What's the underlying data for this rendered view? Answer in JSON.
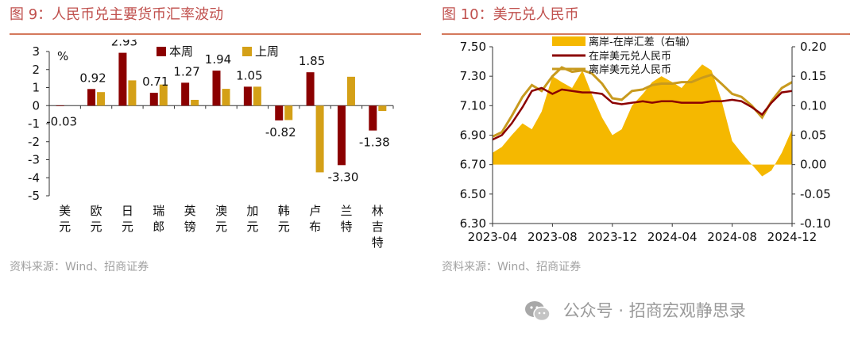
{
  "left_panel": {
    "title": "图 9：人民币兑主要货币汇率波动",
    "source": "资料来源：Wind、招商证券",
    "legend_colors": {
      "本周": "#8b0000",
      "上周": "#d4a017"
    }
  },
  "right_panel": {
    "title": "图 10：美元兑人民币",
    "source": "资料来源：Wind、招商证券",
    "colors": {
      "spread": "#f5b800",
      "onshore": "#8b0000",
      "offshore": "#c89a1e"
    }
  },
  "watermark": {
    "text": "公众号 · 招商宏观静思录",
    "icon": "wechat-icon"
  },
  "chart_data": [
    {
      "type": "bar",
      "unit": "%",
      "categories": [
        "美元",
        "欧元",
        "日元",
        "瑞郎",
        "英镑",
        "澳元",
        "加元",
        "韩元",
        "卢布",
        "兰特",
        "林吉特"
      ],
      "series": [
        {
          "name": "本周",
          "values": [
            -0.03,
            0.92,
            2.93,
            0.71,
            1.27,
            1.94,
            1.05,
            -0.82,
            1.85,
            -3.3,
            -1.38
          ],
          "labels": [
            "-0.03",
            "0.92",
            "2.93",
            "0.71",
            "1.27",
            "1.94",
            "1.05",
            "-0.82",
            "1.85",
            "-3.30",
            "-1.38"
          ]
        },
        {
          "name": "上周",
          "values": [
            0.0,
            0.75,
            1.4,
            1.17,
            0.32,
            0.93,
            1.05,
            -0.8,
            -3.7,
            1.6,
            -0.3
          ]
        }
      ],
      "ylim": [
        -5,
        3
      ],
      "yticks": [
        "3",
        "2",
        "1",
        "0",
        "-1",
        "-2",
        "-3",
        "-4",
        "-5"
      ],
      "legend": "top"
    },
    {
      "type": "line",
      "xticks": [
        "2023-04",
        "2023-08",
        "2023-12",
        "2024-04",
        "2024-08",
        "2024-12"
      ],
      "left_ylim": [
        6.3,
        7.5
      ],
      "left_yticks": [
        "7.50",
        "7.30",
        "7.10",
        "6.90",
        "6.70",
        "6.50",
        "6.30"
      ],
      "right_ylim": [
        -0.1,
        0.2
      ],
      "right_yticks": [
        "0.20",
        "0.15",
        "0.10",
        "0.05",
        "0.00",
        "-0.05",
        "-0.10"
      ],
      "legend": "top",
      "series": [
        {
          "name": "离岸-在岸汇差（右轴）",
          "axis": "right",
          "kind": "area",
          "x": [
            "2023-04-01",
            "2023-04-20",
            "2023-05-10",
            "2023-06-01",
            "2023-06-20",
            "2023-07-10",
            "2023-08-01",
            "2023-08-20",
            "2023-09-10",
            "2023-10-01",
            "2023-10-20",
            "2023-11-10",
            "2023-12-01",
            "2023-12-20",
            "2024-01-10",
            "2024-02-01",
            "2024-02-20",
            "2024-03-10",
            "2024-04-01",
            "2024-04-20",
            "2024-05-10",
            "2024-06-01",
            "2024-06-20",
            "2024-07-10",
            "2024-08-01",
            "2024-08-20",
            "2024-09-10",
            "2024-10-01",
            "2024-10-20",
            "2024-11-10",
            "2024-12-01",
            "2024-12-20"
          ],
          "values": [
            0.02,
            0.03,
            0.05,
            0.07,
            0.06,
            0.09,
            0.15,
            0.14,
            0.13,
            0.16,
            0.12,
            0.08,
            0.05,
            0.06,
            0.1,
            0.12,
            0.14,
            0.15,
            0.14,
            0.13,
            0.15,
            0.17,
            0.16,
            0.11,
            0.04,
            0.02,
            0.0,
            -0.02,
            -0.01,
            0.02,
            0.06,
            0.1
          ]
        },
        {
          "name": "在岸美元兑人民币",
          "axis": "left",
          "kind": "line",
          "x": [
            "2023-04-01",
            "2023-04-20",
            "2023-05-10",
            "2023-06-01",
            "2023-06-20",
            "2023-07-10",
            "2023-08-01",
            "2023-08-20",
            "2023-09-10",
            "2023-10-01",
            "2023-10-20",
            "2023-11-10",
            "2023-12-01",
            "2023-12-20",
            "2024-01-10",
            "2024-02-01",
            "2024-02-20",
            "2024-03-10",
            "2024-04-01",
            "2024-04-20",
            "2024-05-10",
            "2024-06-01",
            "2024-06-20",
            "2024-07-10",
            "2024-08-01",
            "2024-08-20",
            "2024-09-10",
            "2024-10-01",
            "2024-10-20",
            "2024-11-10",
            "2024-12-01",
            "2024-12-20"
          ],
          "values": [
            6.87,
            6.9,
            6.98,
            7.09,
            7.2,
            7.22,
            7.18,
            7.21,
            7.2,
            7.19,
            7.19,
            7.18,
            7.12,
            7.11,
            7.12,
            7.13,
            7.12,
            7.13,
            7.13,
            7.12,
            7.12,
            7.12,
            7.13,
            7.13,
            7.14,
            7.13,
            7.09,
            7.04,
            7.12,
            7.19,
            7.2,
            7.19
          ]
        },
        {
          "name": "离岸美元兑人民币",
          "axis": "left",
          "kind": "line",
          "x": [
            "2023-04-01",
            "2023-04-20",
            "2023-05-10",
            "2023-06-01",
            "2023-06-20",
            "2023-07-10",
            "2023-08-01",
            "2023-08-20",
            "2023-09-10",
            "2023-10-01",
            "2023-10-20",
            "2023-11-10",
            "2023-12-01",
            "2023-12-20",
            "2024-01-10",
            "2024-02-01",
            "2024-02-20",
            "2024-03-10",
            "2024-04-01",
            "2024-04-20",
            "2024-05-10",
            "2024-06-01",
            "2024-06-20",
            "2024-07-10",
            "2024-08-01",
            "2024-08-20",
            "2024-09-10",
            "2024-10-01",
            "2024-10-20",
            "2024-11-10",
            "2024-12-01",
            "2024-12-20"
          ],
          "values": [
            6.89,
            6.92,
            7.03,
            7.16,
            7.24,
            7.2,
            7.3,
            7.36,
            7.33,
            7.34,
            7.32,
            7.25,
            7.15,
            7.14,
            7.2,
            7.21,
            7.24,
            7.25,
            7.25,
            7.26,
            7.26,
            7.29,
            7.31,
            7.25,
            7.18,
            7.16,
            7.1,
            7.02,
            7.13,
            7.22,
            7.26,
            7.3
          ]
        }
      ]
    }
  ]
}
